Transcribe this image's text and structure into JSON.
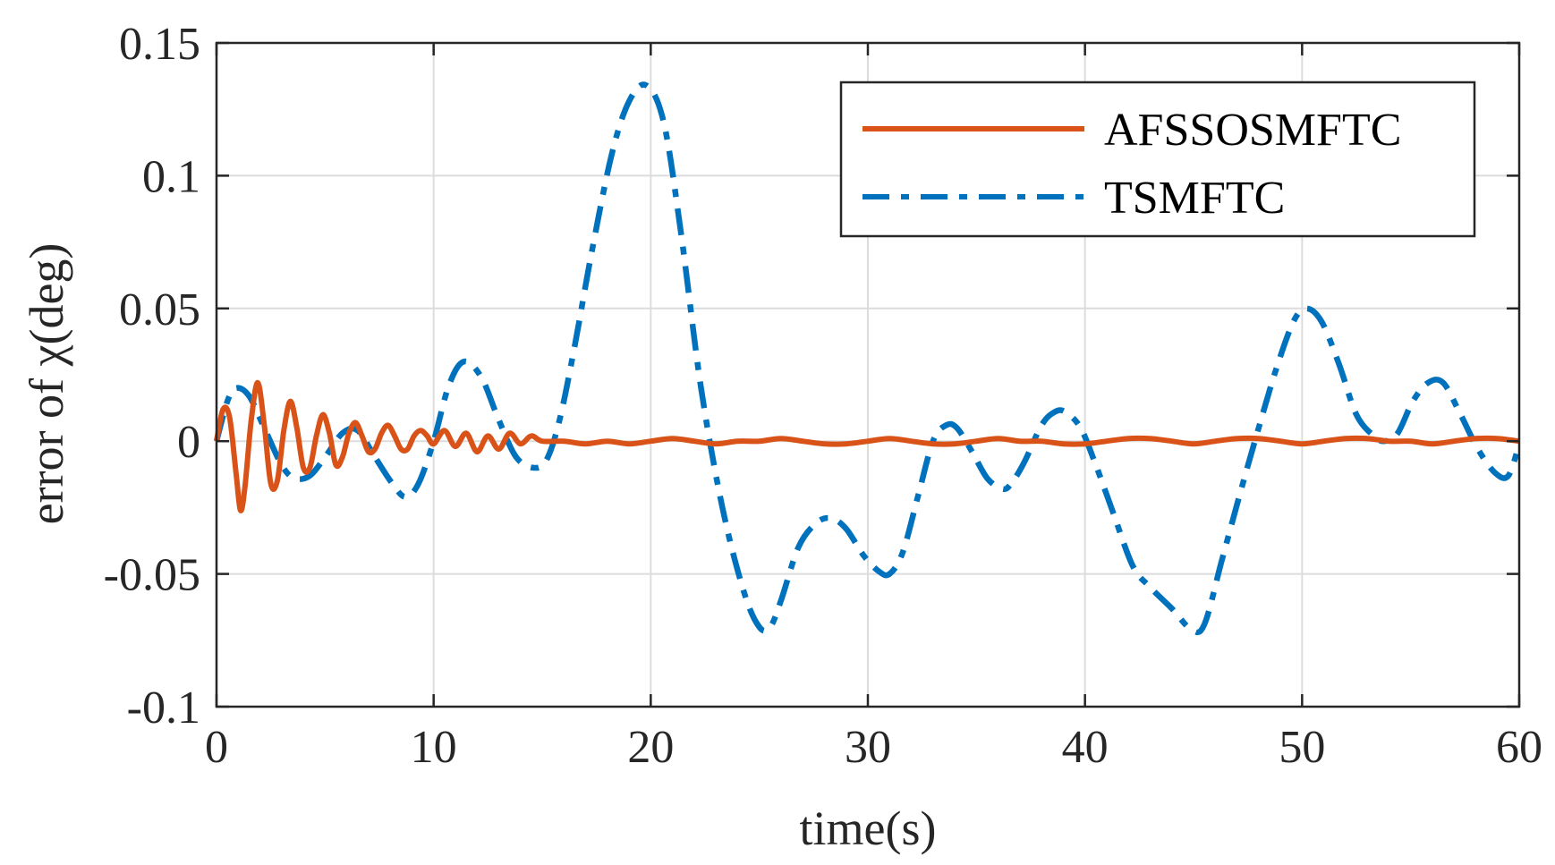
{
  "chart_data": {
    "type": "line",
    "title": "",
    "xlabel": "time(s)",
    "ylabel": "error of χ(deg)",
    "xlim": [
      0,
      60
    ],
    "ylim": [
      -0.1,
      0.15
    ],
    "xticks": [
      0,
      10,
      20,
      30,
      40,
      50,
      60
    ],
    "yticks": [
      -0.1,
      -0.05,
      0,
      0.05,
      0.1,
      0.15
    ],
    "xtick_labels": [
      "0",
      "10",
      "20",
      "30",
      "40",
      "50",
      "60"
    ],
    "ytick_labels": [
      "-0.1",
      "-0.05",
      "0",
      "0.05",
      "0.1",
      "0.15"
    ],
    "grid": true,
    "legend_position": "top-right",
    "series": [
      {
        "name": "AFSSOSMFTC",
        "color": "#D95319",
        "style": "solid",
        "x": [
          0,
          0.3,
          0.6,
          0.9,
          1.1,
          1.3,
          1.6,
          1.9,
          2.2,
          2.5,
          2.8,
          3.1,
          3.4,
          3.7,
          4.0,
          4.3,
          4.6,
          4.9,
          5.2,
          5.5,
          5.8,
          6.1,
          6.4,
          6.7,
          7.0,
          7.3,
          7.6,
          7.9,
          8.2,
          8.5,
          8.8,
          9.1,
          9.4,
          9.7,
          10.0,
          10.5,
          11.0,
          11.5,
          12.0,
          12.5,
          13.0,
          13.5,
          14.0,
          14.5,
          15.0,
          16,
          17,
          18,
          19,
          20,
          21,
          22,
          23,
          24,
          25,
          26,
          27,
          28,
          29,
          30,
          31,
          32,
          33,
          34,
          35,
          36,
          37,
          38,
          39,
          40,
          41,
          42,
          43,
          44,
          45,
          46,
          47,
          48,
          49,
          50,
          51,
          52,
          53,
          54,
          55,
          56,
          57,
          58,
          59,
          60
        ],
        "y": [
          0.0,
          0.012,
          0.009,
          -0.012,
          -0.026,
          -0.018,
          0.008,
          0.022,
          0.006,
          -0.016,
          -0.015,
          0.004,
          0.015,
          0.005,
          -0.01,
          -0.01,
          0.002,
          0.01,
          0.003,
          -0.009,
          -0.006,
          0.003,
          0.007,
          0.002,
          -0.004,
          -0.003,
          0.003,
          0.006,
          0.002,
          -0.003,
          -0.003,
          0.002,
          0.004,
          0.002,
          -0.001,
          0.004,
          -0.002,
          0.003,
          -0.004,
          0.002,
          -0.003,
          0.003,
          -0.001,
          0.002,
          0.0,
          0.0,
          -0.001,
          0.0,
          -0.001,
          0.0,
          0.001,
          0.0,
          -0.001,
          0.0,
          0.0,
          0.001,
          0.0,
          -0.001,
          -0.001,
          0.0,
          0.001,
          0.0,
          -0.001,
          -0.001,
          0.0,
          0.001,
          0.0,
          0.0,
          -0.001,
          -0.001,
          0.0,
          0.001,
          0.001,
          0.0,
          -0.001,
          0.0,
          0.001,
          0.001,
          0.0,
          -0.001,
          0.0,
          0.001,
          0.001,
          0.0,
          0.0,
          -0.001,
          0.0,
          0.001,
          0.001,
          0.0
        ]
      },
      {
        "name": "TSMFTC",
        "color": "#0072BD",
        "style": "dashdot",
        "x": [
          0,
          0.5,
          0.9,
          1.5,
          2.2,
          3.0,
          3.6,
          4.3,
          5.0,
          5.8,
          6.5,
          7.3,
          8.1,
          8.7,
          9.3,
          10.0,
          10.7,
          11.4,
          12.2,
          13.0,
          13.8,
          14.6,
          15.2,
          15.8,
          16.5,
          17.3,
          18.2,
          19.0,
          19.8,
          20.6,
          21.4,
          22.3,
          23.3,
          24.3,
          25.0,
          25.5,
          26.0,
          26.8,
          27.6,
          28.3,
          29.0,
          29.8,
          30.5,
          31.0,
          31.6,
          32.3,
          33.0,
          33.6,
          34.1,
          34.8,
          35.5,
          36.2,
          36.6,
          37.2,
          38.0,
          38.6,
          39.1,
          39.8,
          40.5,
          41.3,
          42.2,
          43.0,
          44.0,
          44.9,
          45.5,
          46.3,
          47.2,
          48.0,
          48.8,
          49.6,
          50.2,
          50.9,
          51.7,
          52.5,
          53.3,
          53.8,
          54.4,
          55.1,
          55.8,
          56.5,
          57.3,
          58.1,
          58.9,
          59.5,
          60.0
        ],
        "y": [
          0.0,
          0.015,
          0.02,
          0.017,
          0.005,
          -0.009,
          -0.014,
          -0.013,
          -0.006,
          0.003,
          0.004,
          -0.006,
          -0.016,
          -0.021,
          -0.016,
          0.0,
          0.021,
          0.03,
          0.024,
          0.008,
          -0.006,
          -0.01,
          -0.007,
          0.008,
          0.036,
          0.072,
          0.108,
          0.128,
          0.134,
          0.12,
          0.078,
          0.021,
          -0.025,
          -0.057,
          -0.07,
          -0.07,
          -0.06,
          -0.04,
          -0.031,
          -0.029,
          -0.033,
          -0.043,
          -0.049,
          -0.05,
          -0.042,
          -0.021,
          0.0,
          0.006,
          0.005,
          -0.004,
          -0.014,
          -0.018,
          -0.016,
          -0.008,
          0.006,
          0.011,
          0.011,
          0.005,
          -0.009,
          -0.027,
          -0.047,
          -0.055,
          -0.063,
          -0.071,
          -0.069,
          -0.045,
          -0.018,
          0.005,
          0.027,
          0.045,
          0.05,
          0.045,
          0.029,
          0.01,
          0.002,
          0.0,
          0.003,
          0.015,
          0.022,
          0.022,
          0.01,
          -0.003,
          -0.012,
          -0.013,
          -0.001
        ]
      }
    ]
  },
  "legend": {
    "items": [
      "AFSSOSMFTC",
      "TSMFTC"
    ]
  }
}
